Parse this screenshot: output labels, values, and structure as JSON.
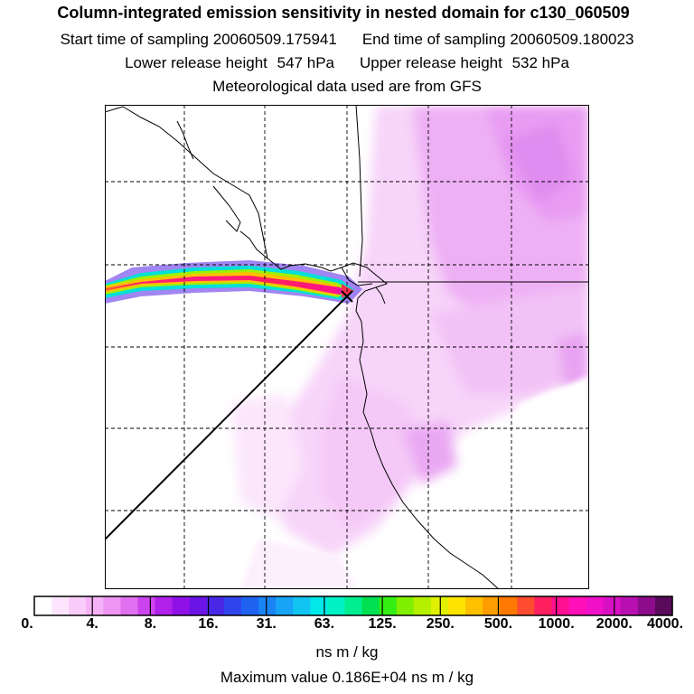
{
  "title": "Column-integrated emission sensitivity in nested domain for c130_060509",
  "start_time": {
    "label": "Start time of sampling",
    "value": "20060509.175941"
  },
  "end_time": {
    "label": "End time of sampling",
    "value": "20060509.180023"
  },
  "lower_release": {
    "label": "Lower release height",
    "value": "547",
    "unit": "hPa"
  },
  "upper_release": {
    "label": "Upper release height",
    "value": "532",
    "unit": "hPa"
  },
  "met_data": "Meteorological data used are from GFS",
  "colorbar": {
    "tick_labels": [
      "0.",
      "4.",
      "8.",
      "16.",
      "31.",
      "63.",
      "125.",
      "250.",
      "500.",
      "1000.",
      "2000.",
      "4000."
    ],
    "units": "ns m / kg",
    "colors": [
      "#ffffff",
      "#fde6fd",
      "#f9ccf9",
      "#f5b2f7",
      "#ee94f3",
      "#e070f0",
      "#cc44ee",
      "#b020ea",
      "#9010e8",
      "#6a14e6",
      "#4828e6",
      "#3044ee",
      "#1e62f2",
      "#1a84f4",
      "#18a4f6",
      "#12c4f2",
      "#00e8e8",
      "#00f2c4",
      "#00ee90",
      "#00e050",
      "#34ee14",
      "#80f000",
      "#b4f000",
      "#e0f000",
      "#ffe400",
      "#ffc000",
      "#ff9c00",
      "#ff7800",
      "#ff4c30",
      "#ff2060",
      "#ff1090",
      "#ff10b8",
      "#f010c8",
      "#d810c4",
      "#b810b0",
      "#8c0c8c",
      "#5a0a5a"
    ]
  },
  "max_value": {
    "label": "Maximum value",
    "value": "0.186E+04",
    "unit": "ns m / kg"
  }
}
